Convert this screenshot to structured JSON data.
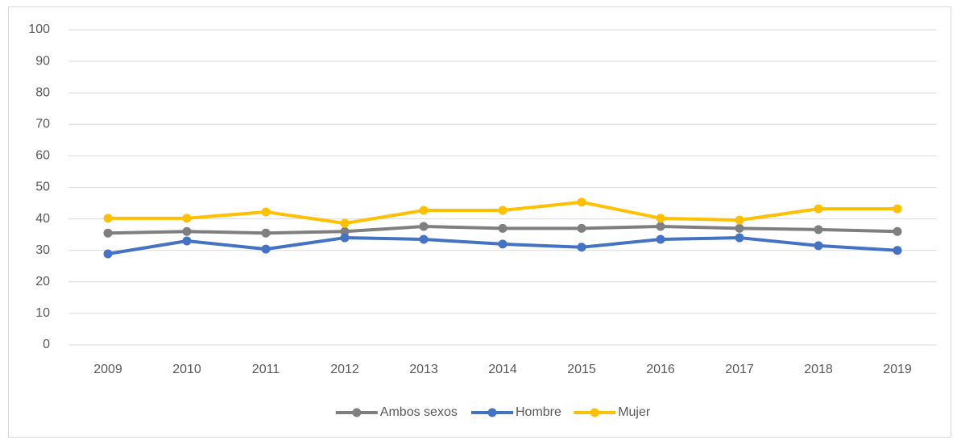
{
  "chart_data": {
    "type": "line",
    "categories": [
      "2009",
      "2010",
      "2011",
      "2012",
      "2013",
      "2014",
      "2015",
      "2016",
      "2017",
      "2018",
      "2019"
    ],
    "series": [
      {
        "name": "Ambos sexos",
        "color": "#7f7f7f",
        "values": [
          35.5,
          36,
          35.5,
          36,
          37.6,
          37,
          37,
          37.6,
          37,
          36.6,
          36
        ]
      },
      {
        "name": "Hombre",
        "color": "#4472c4",
        "values": [
          28.9,
          33,
          30.4,
          34,
          33.5,
          32,
          31,
          33.5,
          34,
          31.5,
          30
        ]
      },
      {
        "name": "Mujer",
        "color": "#ffc000",
        "values": [
          40.2,
          40.2,
          42.2,
          38.6,
          42.7,
          42.7,
          45.3,
          40.2,
          39.6,
          43.2,
          43.2
        ]
      }
    ],
    "ylim": [
      0,
      100
    ],
    "yticks": [
      0,
      10,
      20,
      30,
      40,
      50,
      60,
      70,
      80,
      90,
      100
    ],
    "grid": true,
    "legend": "bottom"
  }
}
